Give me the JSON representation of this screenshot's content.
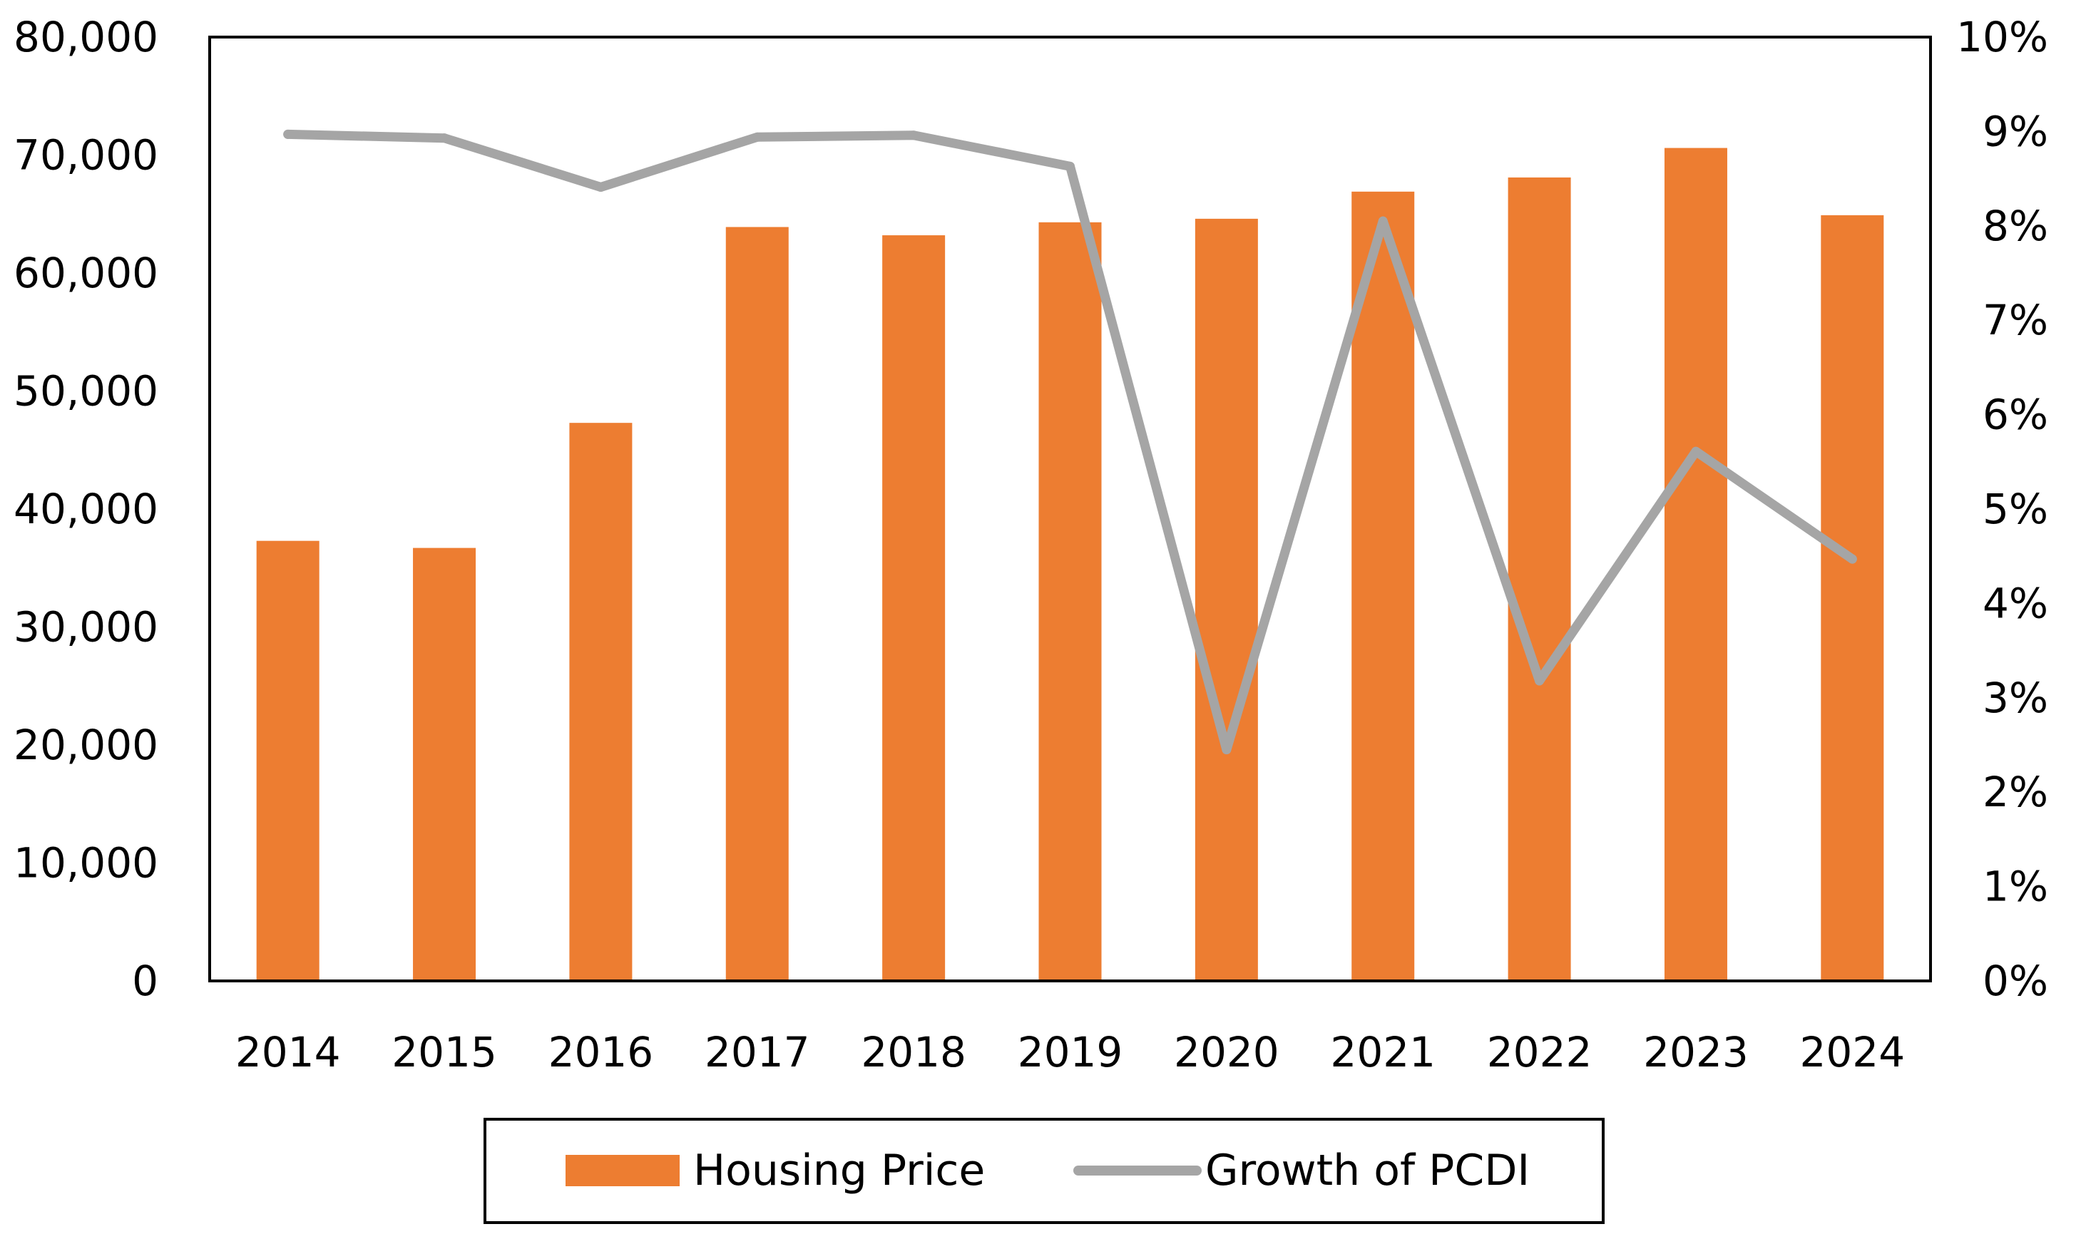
{
  "chart_data": {
    "type": "bar",
    "categories": [
      "2014",
      "2015",
      "2016",
      "2017",
      "2018",
      "2019",
      "2020",
      "2021",
      "2022",
      "2023",
      "2024"
    ],
    "series": [
      {
        "name": "Housing Price",
        "type": "bar",
        "axis": "left",
        "color": "#ED7D31",
        "values": [
          37300,
          36700,
          47300,
          63900,
          63200,
          64300,
          64600,
          66900,
          68100,
          70600,
          64900
        ]
      },
      {
        "name": "Growth of PCDI",
        "type": "line",
        "axis": "right",
        "color": "#A5A5A5",
        "values": [
          0.0897,
          0.0893,
          0.0841,
          0.0894,
          0.0896,
          0.0863,
          0.0245,
          0.0805,
          0.0318,
          0.0561,
          0.0447
        ]
      }
    ],
    "left_axis": {
      "min": 0,
      "max": 80000,
      "ticks": [
        0,
        10000,
        20000,
        30000,
        40000,
        50000,
        60000,
        70000,
        80000
      ],
      "tick_labels": [
        "0",
        "10,000",
        "20,000",
        "30,000",
        "40,000",
        "50,000",
        "60,000",
        "70,000",
        "80,000"
      ]
    },
    "right_axis": {
      "min": 0,
      "max": 0.1,
      "ticks": [
        0,
        0.01,
        0.02,
        0.03,
        0.04,
        0.05,
        0.06,
        0.07,
        0.08,
        0.09,
        0.1
      ],
      "tick_labels": [
        "0%",
        "1%",
        "2%",
        "3%",
        "4%",
        "5%",
        "6%",
        "7%",
        "8%",
        "9%",
        "10%"
      ]
    },
    "grid": false,
    "legend_position": "bottom"
  }
}
